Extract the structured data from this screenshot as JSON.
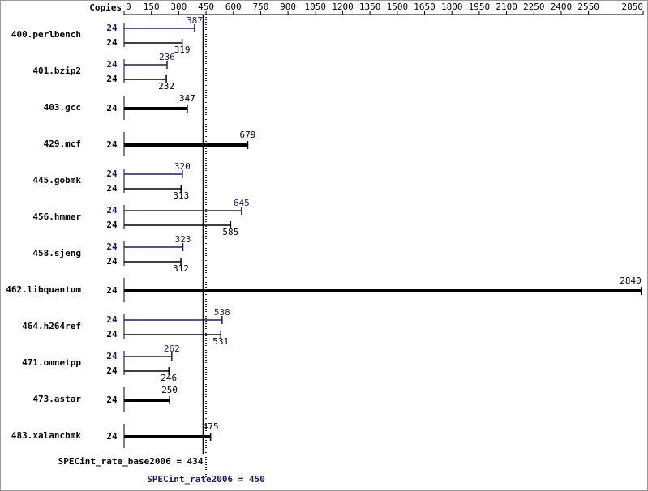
{
  "copies_label": "Copies",
  "chart_data": {
    "type": "bar",
    "orientation": "horizontal",
    "categories": [
      "400.perlbench",
      "401.bzip2",
      "403.gcc",
      "429.mcf",
      "445.gobmk",
      "456.hmmer",
      "458.sjeng",
      "462.libquantum",
      "464.h264ref",
      "471.omnetpp",
      "473.astar",
      "483.xalancbmk"
    ],
    "series": [
      {
        "color": "#000000",
        "values": [
          319,
          232,
          347,
          679,
          313,
          585,
          312,
          2840,
          531,
          246,
          250,
          475
        ],
        "copies": [
          24,
          24,
          24,
          24,
          24,
          24,
          24,
          24,
          24,
          24,
          24,
          24
        ]
      },
      {
        "color": "#191970",
        "values": [
          387,
          236,
          null,
          null,
          320,
          645,
          323,
          null,
          538,
          262,
          null,
          null
        ],
        "copies": [
          24,
          24,
          null,
          null,
          24,
          24,
          24,
          null,
          24,
          24,
          null,
          null
        ]
      }
    ],
    "xlim": [
      0,
      2850
    ],
    "xticks": [
      0,
      150,
      300,
      450,
      600,
      750,
      900,
      1050,
      1200,
      1350,
      1500,
      1650,
      1800,
      1950,
      2100,
      2250,
      2400,
      2550,
      2850
    ],
    "reference_lines": [
      {
        "label": "SPECint_rate_base2006 = 434",
        "value": 434,
        "color": "#000000",
        "style": "solid"
      },
      {
        "label": "SPECint_rate2006 = 450",
        "value": 450,
        "color": "#191970",
        "style": "dotted"
      }
    ]
  }
}
